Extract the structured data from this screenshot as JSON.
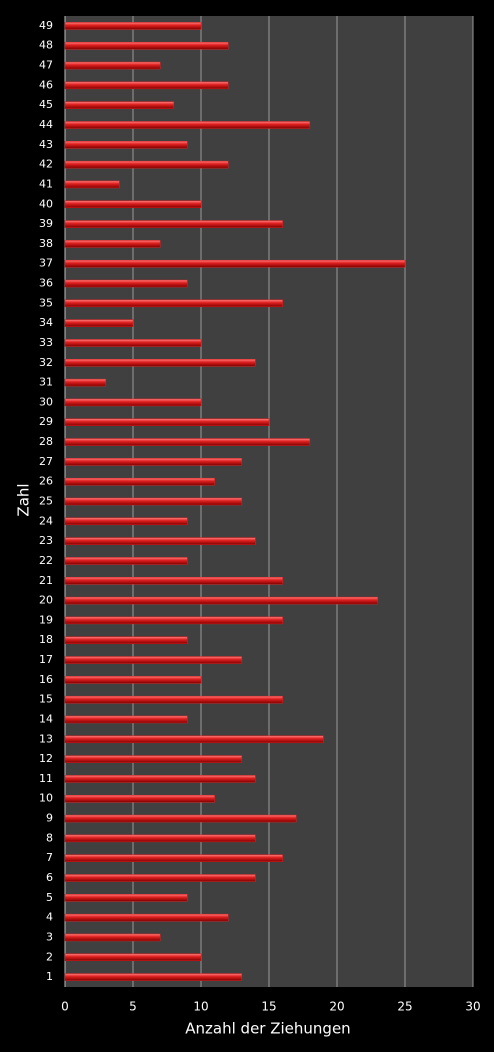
{
  "chart_data": {
    "type": "bar",
    "orientation": "horizontal",
    "x_label": "Anzahl der Ziehungen",
    "y_label": "Zahl",
    "categories": [
      "1",
      "2",
      "3",
      "4",
      "5",
      "6",
      "7",
      "8",
      "9",
      "10",
      "11",
      "12",
      "13",
      "14",
      "15",
      "16",
      "17",
      "18",
      "19",
      "20",
      "21",
      "22",
      "23",
      "24",
      "25",
      "26",
      "27",
      "28",
      "29",
      "30",
      "31",
      "32",
      "33",
      "34",
      "35",
      "36",
      "37",
      "38",
      "39",
      "40",
      "41",
      "42",
      "43",
      "44",
      "45",
      "46",
      "47",
      "48",
      "49"
    ],
    "values": [
      13,
      10,
      7,
      12,
      9,
      14,
      16,
      14,
      17,
      11,
      14,
      13,
      19,
      9,
      16,
      10,
      13,
      9,
      16,
      23,
      16,
      9,
      14,
      9,
      13,
      11,
      13,
      18,
      15,
      10,
      3,
      14,
      10,
      5,
      16,
      9,
      25,
      7,
      16,
      10,
      4,
      12,
      9,
      18,
      8,
      12,
      7,
      12,
      10
    ],
    "color": "#e02020",
    "xlim": [
      0,
      30
    ],
    "xticks": [
      0,
      5,
      10,
      15,
      20,
      25,
      30
    ],
    "grid": true
  }
}
